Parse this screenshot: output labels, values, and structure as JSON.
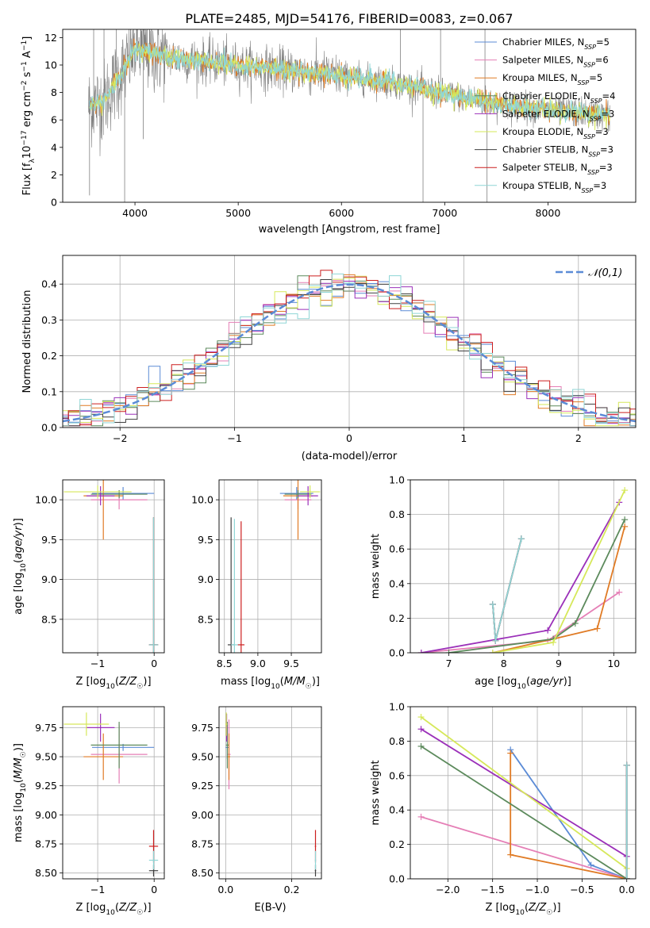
{
  "series_names": [
    "Chabrier MILES, N_SSP=5",
    "Salpeter MILES, N_SSP=6",
    "Kroupa MILES, N_SSP=5",
    "Chabrier ELODIE, N_SSP=4",
    "Salpeter ELODIE, N_SSP=3",
    "Kroupa ELODIE, N_SSP=3",
    "Chabrier STELIB, N_SSP=3",
    "Salpeter STELIB, N_SSP=3",
    "Kroupa STELIB, N_SSP=3"
  ],
  "series_colors": [
    "#5b8bd6",
    "#e57fb6",
    "#e07b25",
    "#5c8a5c",
    "#9b30b9",
    "#d6e85a",
    "#404040",
    "#cc1f1f",
    "#8fd6d6"
  ],
  "chart_data": [
    {
      "type": "line",
      "title": "PLATE=2485, MJD=54176, FIBERID=0083, z=0.067",
      "xlabel": "wavelength [Angstrom, rest frame]",
      "ylabel": "Flux [f_λ10^-17 erg cm^-2 s^-1 A^-1]",
      "xlim": [
        3300,
        8850
      ],
      "ylim": [
        0,
        12.6
      ],
      "xticks": [
        4000,
        5000,
        6000,
        7000,
        8000
      ],
      "yticks": [
        0,
        2,
        4,
        6,
        8,
        10,
        12
      ],
      "observed_continuum": {
        "x": [
          3550,
          3700,
          3900,
          4000,
          4200,
          4500,
          5000,
          5500,
          6000,
          6500,
          7000,
          7500,
          8000,
          8500,
          8600
        ],
        "y": [
          7.0,
          7.4,
          9.8,
          11.2,
          10.8,
          10.4,
          10.0,
          9.6,
          9.2,
          8.7,
          7.9,
          7.2,
          6.7,
          6.4,
          6.3
        ]
      },
      "legend": "top-right",
      "grid": false
    },
    {
      "type": "line",
      "xlabel": "(data-model)/error",
      "ylabel": "Normed distribution",
      "xlim": [
        -2.5,
        2.5
      ],
      "ylim": [
        0,
        0.48
      ],
      "xticks": [
        -2,
        -1,
        0,
        1,
        2
      ],
      "yticks": [
        0.0,
        0.1,
        0.2,
        0.3,
        0.4
      ],
      "histogram_bin_width": 0.1,
      "reference": {
        "label": "𝒩(0,1)",
        "mean": 0,
        "sigma": 1
      },
      "legend": "top-right",
      "grid": true
    },
    {
      "type": "scatter",
      "xlabel": "Z [log10(Z/Z☉)]",
      "ylabel": "age  [log10(age/yr)]",
      "xlim": [
        -1.62,
        0.18
      ],
      "ylim": [
        8.08,
        10.25
      ],
      "xticks": [
        -1,
        0
      ],
      "yticks": [
        8.5,
        9.0,
        9.5,
        10.0
      ],
      "grid": true,
      "points": [
        {
          "x": -0.55,
          "y": 10.08,
          "xerr": 0.55,
          "yerr": 0.08
        },
        {
          "x": -0.62,
          "y": 10.0,
          "xerr": 0.5,
          "yerr": 0.12
        },
        {
          "x": -0.9,
          "y": 10.05,
          "xerr": 0.35,
          "yerr": 0.55
        },
        {
          "x": -0.62,
          "y": 10.07,
          "xerr": 0.5,
          "yerr": 0.05
        },
        {
          "x": -0.95,
          "y": 10.05,
          "xerr": 0.25,
          "yerr": 0.12
        },
        {
          "x": -1.0,
          "y": 10.1,
          "xerr": 0.6,
          "yerr": 0.08
        },
        {
          "x": -0.01,
          "y": 8.18,
          "xerr": 0.08,
          "yerr": 1.6
        },
        {
          "x": -0.01,
          "y": 8.18,
          "xerr": 0.08,
          "yerr": 1.6
        },
        {
          "x": -0.01,
          "y": 8.18,
          "xerr": 0.08,
          "yerr": 1.6
        }
      ]
    },
    {
      "type": "scatter",
      "xlabel": "mass [log10(M/M☉)]",
      "ylabel": "",
      "xlim": [
        8.42,
        9.95
      ],
      "ylim": [
        8.08,
        10.25
      ],
      "xticks": [
        8.5,
        9.0,
        9.5
      ],
      "yticks": [
        8.5,
        9.0,
        9.5,
        10.0
      ],
      "grid": true,
      "points": [
        {
          "x": 9.58,
          "y": 10.08,
          "xerr": 0.25,
          "yerr": 0.08
        },
        {
          "x": 9.6,
          "y": 10.0,
          "xerr": 0.2,
          "yerr": 0.12
        },
        {
          "x": 9.6,
          "y": 10.05,
          "xerr": 0.22,
          "yerr": 0.55
        },
        {
          "x": 9.6,
          "y": 10.07,
          "xerr": 0.2,
          "yerr": 0.05
        },
        {
          "x": 9.75,
          "y": 10.05,
          "xerr": 0.15,
          "yerr": 0.12
        },
        {
          "x": 9.78,
          "y": 10.1,
          "xerr": 0.15,
          "yerr": 0.08
        },
        {
          "x": 8.6,
          "y": 8.18,
          "xerr": 0.05,
          "yerr": 1.6
        },
        {
          "x": 8.75,
          "y": 8.18,
          "xerr": 0.05,
          "yerr": 1.55
        },
        {
          "x": 8.65,
          "y": 8.18,
          "xerr": 0.05,
          "yerr": 1.58
        }
      ]
    },
    {
      "type": "line",
      "xlabel": "age  [log10(age/yr)]",
      "ylabel": "mass weight",
      "xlim": [
        6.3,
        10.4
      ],
      "ylim": [
        0,
        1.0
      ],
      "xticks": [
        7,
        8,
        9,
        10
      ],
      "yticks": [
        0.0,
        0.2,
        0.4,
        0.6,
        0.8,
        1.0
      ],
      "grid": true,
      "series": [
        {
          "x": [
            7.8,
            7.85,
            8.32
          ],
          "y": [
            0.28,
            0.07,
            0.66
          ]
        },
        {
          "x": [
            6.5,
            8.8,
            10.1
          ],
          "y": [
            0.0,
            0.07,
            0.35
          ]
        },
        {
          "x": [
            7.8,
            8.9,
            9.7,
            10.2
          ],
          "y": [
            0.0,
            0.08,
            0.14,
            0.73
          ]
        },
        {
          "x": [
            7.0,
            8.9,
            9.3,
            10.2
          ],
          "y": [
            0.0,
            0.08,
            0.17,
            0.77
          ]
        },
        {
          "x": [
            6.5,
            8.8,
            10.1
          ],
          "y": [
            0.0,
            0.13,
            0.87
          ]
        },
        {
          "x": [
            7.8,
            8.9,
            10.2
          ],
          "y": [
            0.0,
            0.06,
            0.94
          ]
        },
        {
          "x": [
            7.8,
            7.85,
            8.32
          ],
          "y": [
            0.28,
            0.07,
            0.66
          ]
        },
        {
          "x": [
            7.8,
            7.85,
            8.32
          ],
          "y": [
            0.28,
            0.07,
            0.66
          ]
        },
        {
          "x": [
            7.8,
            7.85,
            8.32
          ],
          "y": [
            0.28,
            0.07,
            0.66
          ]
        }
      ]
    },
    {
      "type": "scatter",
      "xlabel": "Z [log10(Z/Z☉)]",
      "ylabel": "mass [log10(M/M☉)]",
      "xlim": [
        -1.62,
        0.18
      ],
      "ylim": [
        8.45,
        9.93
      ],
      "xticks": [
        -1,
        0
      ],
      "yticks": [
        8.5,
        8.75,
        9.0,
        9.25,
        9.5,
        9.75
      ],
      "grid": true,
      "points": [
        {
          "x": -0.55,
          "y": 9.58,
          "xerr": 0.55,
          "yerr": 0.03
        },
        {
          "x": -0.62,
          "y": 9.52,
          "xerr": 0.5,
          "yerr": 0.25
        },
        {
          "x": -0.9,
          "y": 9.5,
          "xerr": 0.35,
          "yerr": 0.2
        },
        {
          "x": -0.62,
          "y": 9.6,
          "xerr": 0.5,
          "yerr": 0.2
        },
        {
          "x": -0.95,
          "y": 9.75,
          "xerr": 0.25,
          "yerr": 0.12
        },
        {
          "x": -1.2,
          "y": 9.78,
          "xerr": 0.4,
          "yerr": 0.1
        },
        {
          "x": -0.01,
          "y": 8.52,
          "xerr": 0.08,
          "yerr": 0.05
        },
        {
          "x": -0.01,
          "y": 8.73,
          "xerr": 0.08,
          "yerr": 0.14
        },
        {
          "x": -0.01,
          "y": 8.61,
          "xerr": 0.08,
          "yerr": 0.08
        }
      ]
    },
    {
      "type": "scatter",
      "xlabel": "E(B-V)",
      "ylabel": "",
      "xlim": [
        -0.02,
        0.29
      ],
      "ylim": [
        8.45,
        9.93
      ],
      "xticks": [
        0.0,
        0.2
      ],
      "yticks": [
        8.5,
        8.75,
        9.0,
        9.25,
        9.5,
        9.75
      ],
      "grid": true,
      "points": [
        {
          "x": 0.005,
          "y": 9.58,
          "xerr": 0.005,
          "yerr": 0.1
        },
        {
          "x": 0.01,
          "y": 9.52,
          "xerr": 0.005,
          "yerr": 0.3
        },
        {
          "x": 0.01,
          "y": 9.5,
          "xerr": 0.004,
          "yerr": 0.2
        },
        {
          "x": 0.005,
          "y": 9.6,
          "xerr": 0.004,
          "yerr": 0.2
        },
        {
          "x": 0.003,
          "y": 9.75,
          "xerr": 0.003,
          "yerr": 0.12
        },
        {
          "x": 0.002,
          "y": 9.78,
          "xerr": 0.003,
          "yerr": 0.1
        },
        {
          "x": 0.272,
          "y": 8.52,
          "xerr": 0.002,
          "yerr": 0.05
        },
        {
          "x": 0.272,
          "y": 8.73,
          "xerr": 0.002,
          "yerr": 0.14
        },
        {
          "x": 0.272,
          "y": 8.61,
          "xerr": 0.002,
          "yerr": 0.08
        }
      ]
    },
    {
      "type": "line",
      "xlabel": "Z [log10(Z/Z☉)]",
      "ylabel": "mass weight",
      "xlim": [
        -2.42,
        0.1
      ],
      "ylim": [
        0,
        1.0
      ],
      "xticks": [
        -2.0,
        -1.5,
        -1.0,
        -0.5,
        0.0
      ],
      "yticks": [
        0.0,
        0.2,
        0.4,
        0.6,
        0.8,
        1.0
      ],
      "grid": true,
      "series": [
        {
          "x": [
            -1.3,
            -0.4,
            0.0,
            0.0
          ],
          "y": [
            0.75,
            0.08,
            0.0,
            0.66
          ]
        },
        {
          "x": [
            -2.3,
            0.0
          ],
          "y": [
            0.36,
            0.0
          ]
        },
        {
          "x": [
            -1.3,
            -1.3,
            0.0
          ],
          "y": [
            0.73,
            0.14,
            0.0
          ]
        },
        {
          "x": [
            -2.3,
            0.0
          ],
          "y": [
            0.77,
            0.0
          ]
        },
        {
          "x": [
            -2.3,
            0.0
          ],
          "y": [
            0.87,
            0.13
          ]
        },
        {
          "x": [
            -2.3,
            0.0
          ],
          "y": [
            0.94,
            0.06
          ]
        },
        {
          "x": [
            0.0,
            0.0
          ],
          "y": [
            0.0,
            0.66
          ]
        },
        {
          "x": [
            0.0,
            0.0
          ],
          "y": [
            0.0,
            0.66
          ]
        },
        {
          "x": [
            0.0,
            0.0
          ],
          "y": [
            0.0,
            0.66
          ]
        }
      ]
    }
  ]
}
